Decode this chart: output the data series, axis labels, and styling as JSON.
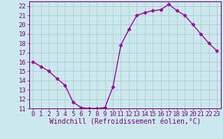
{
  "x": [
    0,
    1,
    2,
    3,
    4,
    5,
    6,
    7,
    8,
    9,
    10,
    11,
    12,
    13,
    14,
    15,
    16,
    17,
    18,
    19,
    20,
    21,
    22,
    23
  ],
  "y": [
    16,
    15.5,
    15,
    14.2,
    13.5,
    11.7,
    11.1,
    11.0,
    11.0,
    11.1,
    13.3,
    17.8,
    19.5,
    21.0,
    21.3,
    21.5,
    21.6,
    22.2,
    21.5,
    21.0,
    20.0,
    19.0,
    18.0,
    17.2
  ],
  "line_color": "#990099",
  "marker": "D",
  "marker_size": 2.5,
  "bg_color": "#cce8ee",
  "grid_color": "#aacccc",
  "xlabel": "Windchill (Refroidissement éolien,°C)",
  "ylim": [
    11,
    22.5
  ],
  "xlim": [
    -0.5,
    23.5
  ],
  "yticks": [
    11,
    12,
    13,
    14,
    15,
    16,
    17,
    18,
    19,
    20,
    21,
    22
  ],
  "xticks": [
    0,
    1,
    2,
    3,
    4,
    5,
    6,
    7,
    8,
    9,
    10,
    11,
    12,
    13,
    14,
    15,
    16,
    17,
    18,
    19,
    20,
    21,
    22,
    23
  ],
  "xlabel_fontsize": 7,
  "tick_fontsize": 6.5,
  "axis_color": "#770077",
  "spine_color": "#770077"
}
